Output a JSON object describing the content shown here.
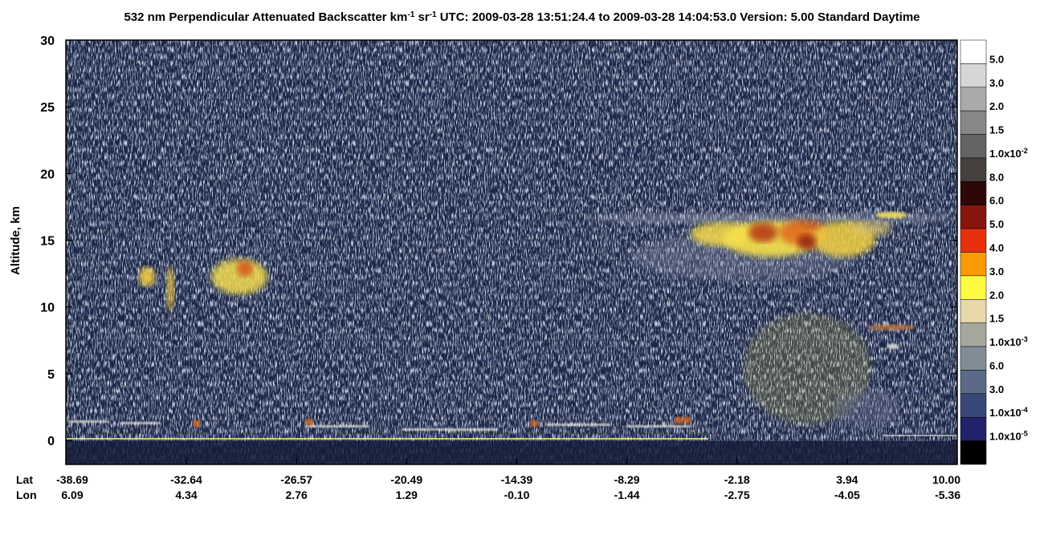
{
  "chart_data": {
    "type": "curtain",
    "title": [
      {
        "text": "532 nm Perpendicular Attenuated Backscatter km"
      },
      {
        "sup": "-1"
      },
      {
        "text": " sr"
      },
      {
        "sup": "-1"
      },
      {
        "text": "  UTC: 2009-03-28 13:51:24.4 to 2009-03-28 14:04:53.0  Version: 5.00 Standard Daytime"
      }
    ],
    "ylabel": "Altitude, km",
    "ylim": [
      -1.8,
      30
    ],
    "yticks": [
      0,
      5,
      10,
      15,
      20,
      25,
      30
    ],
    "x_rows": [
      {
        "name": "Lat",
        "labels": [
          "-38.69",
          "-32.64",
          "-26.57",
          "-20.49",
          "-14.39",
          "-8.29",
          "-2.18",
          "3.94",
          "10.00"
        ]
      },
      {
        "name": "Lon",
        "labels": [
          "6.09",
          "4.34",
          "2.76",
          "1.29",
          "-0.10",
          "-1.44",
          "-2.75",
          "-4.05",
          "-5.36"
        ]
      }
    ],
    "colorbar": {
      "colors": [
        "#ffffff",
        "#d6d6d6",
        "#aaaaaa",
        "#878787",
        "#646464",
        "#46403e",
        "#2e0806",
        "#86160f",
        "#e8300c",
        "#fa9a00",
        "#fbfb40",
        "#e8d8ac",
        "#a6a69c",
        "#828c98",
        "#5a6a88",
        "#374878",
        "#22226a",
        "#000000"
      ],
      "labels": [
        "5.0",
        "3.0",
        "2.0",
        "1.5",
        {
          "label": "1.0x10",
          "sup": "-2"
        },
        "8.0",
        "6.0",
        "5.0",
        "4.0",
        "3.0",
        "2.0",
        "1.5",
        {
          "label": "1.0x10",
          "sup": "-3"
        },
        "6.0",
        "3.0",
        {
          "label": "1.0x10",
          "sup": "-4"
        },
        {
          "label": "1.0x10",
          "sup": "-5"
        }
      ]
    }
  }
}
